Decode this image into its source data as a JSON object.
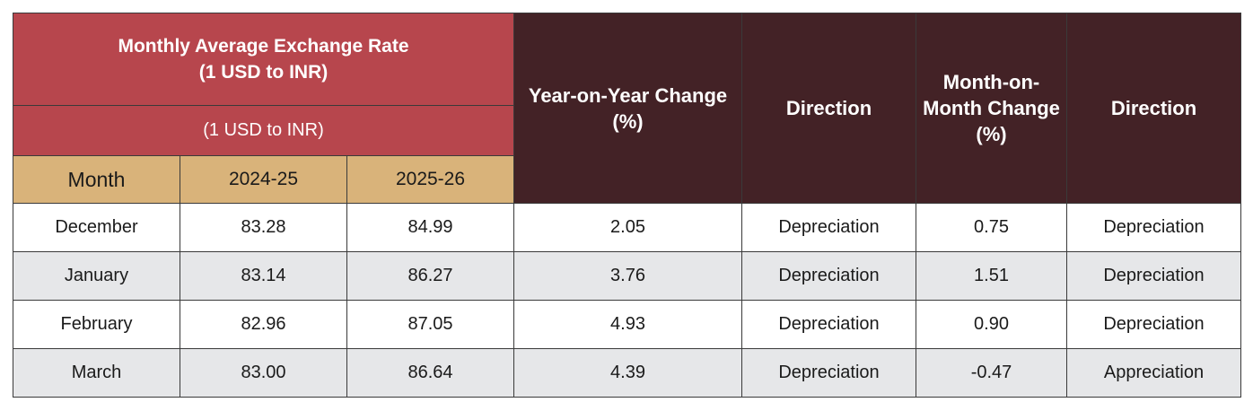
{
  "header": {
    "title_line1": "Monthly Average Exchange Rate",
    "title_line2": "(1 USD to INR)",
    "subtitle": "(1 USD to INR)",
    "col_month": "Month",
    "col_year1": "2024-25",
    "col_year2": "2025-26",
    "yoy_line1": "Year-on-Year Change",
    "yoy_line2": "(%)",
    "direction1": "Direction",
    "mom_line1": "Month-on-",
    "mom_line2": "Month Change",
    "mom_line3": "(%)",
    "direction2": "Direction"
  },
  "rows": [
    {
      "month": "December",
      "y2024": "83.28",
      "y2025": "84.99",
      "yoy": "2.05",
      "dir1": "Depreciation",
      "mom": "0.75",
      "dir2": "Depreciation"
    },
    {
      "month": "January",
      "y2024": "83.14",
      "y2025": "86.27",
      "yoy": "3.76",
      "dir1": "Depreciation",
      "mom": "1.51",
      "dir2": "Depreciation"
    },
    {
      "month": "February",
      "y2024": "82.96",
      "y2025": "87.05",
      "yoy": "4.93",
      "dir1": "Depreciation",
      "mom": "0.90",
      "dir2": "Depreciation"
    },
    {
      "month": "March",
      "y2024": "83.00",
      "y2025": "86.64",
      "yoy": "4.39",
      "dir1": "Depreciation",
      "mom": "-0.47",
      "dir2": "Appreciation"
    }
  ],
  "colors": {
    "header_red": "#b7464d",
    "header_tan": "#d9b37a",
    "header_dark": "#432226",
    "row_alt": "#e6e7e9"
  }
}
